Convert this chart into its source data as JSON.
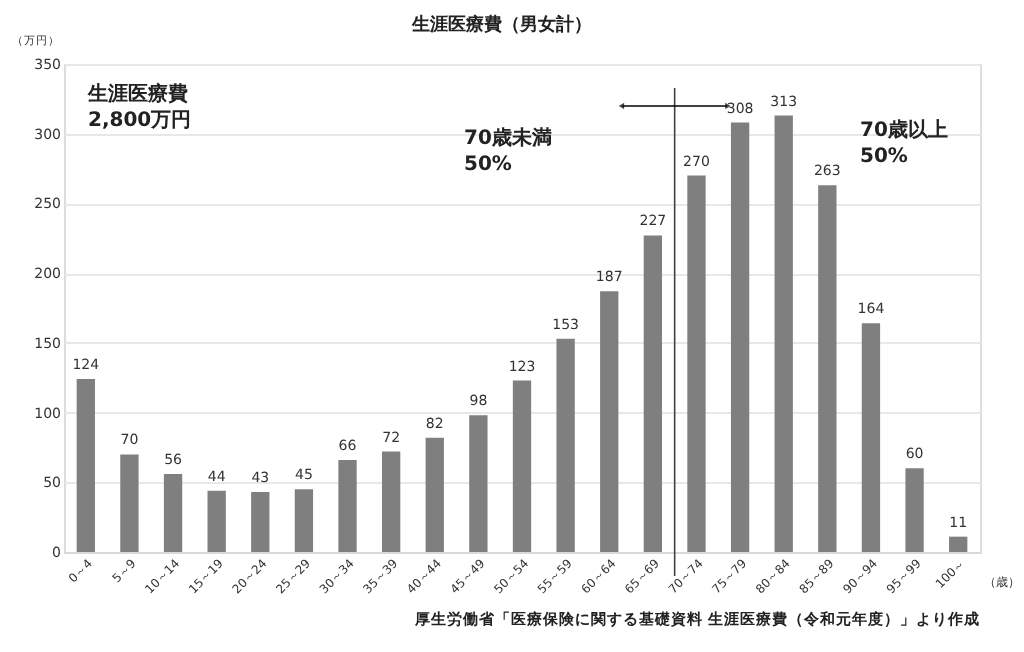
{
  "chart_data": {
    "type": "bar",
    "title": "生涯医療費（男女計）",
    "ylabel": "（万円）",
    "xlabel": "（歳）",
    "categories": [
      "0～4",
      "5～9",
      "10～14",
      "15～19",
      "20～24",
      "25～29",
      "30～34",
      "35～39",
      "40～44",
      "45～49",
      "50～54",
      "55～59",
      "60～64",
      "65～69",
      "70～74",
      "75～79",
      "80～84",
      "85～89",
      "90～94",
      "95～99",
      "100～"
    ],
    "values": [
      124,
      70,
      56,
      44,
      43,
      45,
      66,
      72,
      82,
      98,
      123,
      153,
      187,
      227,
      270,
      308,
      313,
      263,
      164,
      60,
      11
    ],
    "color": "#7f7f7f",
    "data_labels": true,
    "ylim": [
      0,
      350
    ],
    "yticks": [
      0,
      50,
      100,
      150,
      200,
      250,
      300,
      350
    ],
    "grid": "y",
    "ref_lines": [
      {
        "axis": "x",
        "value": "70～74",
        "label": null,
        "color": "#404040"
      }
    ],
    "annotations": [
      "生涯医療費\n2,800万円",
      "70歳未満\n50%",
      "70歳以上\n50%",
      "厚生労働省「医療保険に関する基礎資料 生涯医療費（令和元年度）」より作成"
    ]
  }
}
